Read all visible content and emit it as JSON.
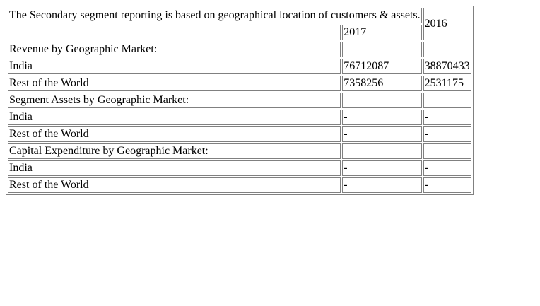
{
  "table": {
    "title": "The Secondary segment reporting is based on geographical location of customers & assets.",
    "year_2017": "2017",
    "year_2016": "2016",
    "rows": [
      {
        "label": "Revenue by Geographic Market:",
        "v2017": "",
        "v2016": ""
      },
      {
        "label": "India",
        "v2017": "76712087",
        "v2016": "38870433"
      },
      {
        "label": "Rest of the World",
        "v2017": "7358256",
        "v2016": "2531175"
      },
      {
        "label": "Segment Assets by Geographic Market:",
        "v2017": "",
        "v2016": ""
      },
      {
        "label": "India",
        "v2017": "-",
        "v2016": "-"
      },
      {
        "label": "Rest of the World",
        "v2017": "-",
        "v2016": "-"
      },
      {
        "label": "Capital Expenditure by Geographic Market:",
        "v2017": "",
        "v2016": ""
      },
      {
        "label": "India",
        "v2017": "-",
        "v2016": "-"
      },
      {
        "label": "Rest of the World",
        "v2017": "-",
        "v2016": "-"
      }
    ]
  }
}
